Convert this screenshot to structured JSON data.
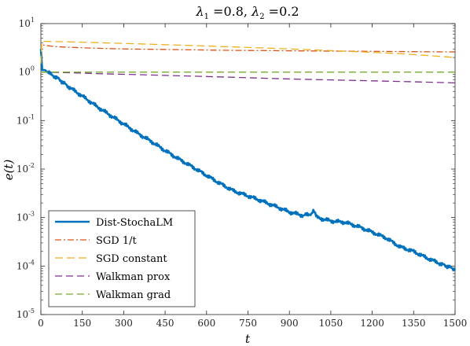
{
  "chart_data": {
    "type": "line",
    "title": "λ₁ =0.8, λ₂ =0.2",
    "xlabel": "t",
    "ylabel": "e(t)",
    "xlim": [
      0,
      1500
    ],
    "ylim": [
      1e-05,
      10
    ],
    "yscale": "log",
    "grid": false,
    "legend_position": "bottom-left",
    "x_ticks": [
      "0",
      "150",
      "300",
      "450",
      "600",
      "750",
      "900",
      "1050",
      "1200",
      "1350",
      "1500"
    ],
    "y_ticks": [
      {
        "base": "10",
        "exp": "1",
        "value": 10
      },
      {
        "base": "10",
        "exp": "0",
        "value": 1
      },
      {
        "base": "10",
        "exp": "-1",
        "value": 0.1
      },
      {
        "base": "10",
        "exp": "-2",
        "value": 0.01
      },
      {
        "base": "10",
        "exp": "-3",
        "value": 0.001
      },
      {
        "base": "10",
        "exp": "-4",
        "value": 0.0001
      },
      {
        "base": "10",
        "exp": "-5",
        "value": 1e-05
      }
    ],
    "series": [
      {
        "name": "Dist-StochaLM",
        "color": "#0072BD",
        "style": "solid",
        "x": [
          0,
          5,
          15,
          30,
          60,
          100,
          150,
          200,
          250,
          300,
          350,
          400,
          450,
          500,
          550,
          600,
          650,
          700,
          750,
          800,
          850,
          900,
          950,
          980,
          990,
          1000,
          1050,
          1100,
          1150,
          1200,
          1250,
          1300,
          1350,
          1400,
          1450,
          1490,
          1500
        ],
        "y": [
          3.0,
          1.1,
          1.1,
          0.95,
          0.75,
          0.5,
          0.32,
          0.2,
          0.13,
          0.085,
          0.055,
          0.037,
          0.024,
          0.016,
          0.011,
          0.0074,
          0.005,
          0.0035,
          0.0028,
          0.0022,
          0.0017,
          0.0013,
          0.0011,
          0.0012,
          0.0014,
          0.001,
          0.00085,
          0.0008,
          0.00065,
          0.0005,
          0.00038,
          0.00025,
          0.0002,
          0.000145,
          0.00011,
          9e-05,
          8.2e-05
        ]
      },
      {
        "name": "SGD 1/t",
        "color": "#D95319",
        "style": "dashdot",
        "x": [
          0,
          3,
          10,
          50,
          100,
          200,
          300,
          400,
          500,
          600,
          700,
          800,
          900,
          1000,
          1100,
          1200,
          1300,
          1400,
          1500
        ],
        "y": [
          1.5,
          3.8,
          3.6,
          3.35,
          3.25,
          3.1,
          3.0,
          2.95,
          2.9,
          2.85,
          2.8,
          2.78,
          2.75,
          2.72,
          2.7,
          2.68,
          2.65,
          2.62,
          2.6
        ]
      },
      {
        "name": "SGD constant",
        "color": "#EDB120",
        "style": "longdash",
        "x": [
          0,
          3,
          10,
          100,
          200,
          300,
          400,
          500,
          600,
          700,
          800,
          900,
          1000,
          1100,
          1200,
          1300,
          1400,
          1500
        ],
        "y": [
          1.5,
          4.2,
          4.3,
          4.2,
          4.05,
          3.9,
          3.75,
          3.6,
          3.45,
          3.3,
          3.15,
          3.0,
          2.85,
          2.7,
          2.55,
          2.4,
          2.2,
          2.0
        ]
      },
      {
        "name": "Walkman prox",
        "color": "#7E2F8E",
        "style": "dashed",
        "x": [
          0,
          10,
          100,
          200,
          300,
          400,
          500,
          600,
          700,
          800,
          900,
          1000,
          1100,
          1200,
          1300,
          1400,
          1500
        ],
        "y": [
          1.0,
          1.0,
          0.97,
          0.93,
          0.9,
          0.87,
          0.84,
          0.81,
          0.78,
          0.75,
          0.72,
          0.7,
          0.68,
          0.66,
          0.64,
          0.62,
          0.6
        ]
      },
      {
        "name": "Walkman grad",
        "color": "#77AC30",
        "style": "dashed",
        "x": [
          0,
          10,
          100,
          300,
          500,
          700,
          900,
          1100,
          1300,
          1500
        ],
        "y": [
          1.0,
          1.0,
          1.0,
          1.0,
          1.0,
          1.0,
          1.0,
          1.0,
          1.0,
          1.0
        ]
      }
    ]
  }
}
